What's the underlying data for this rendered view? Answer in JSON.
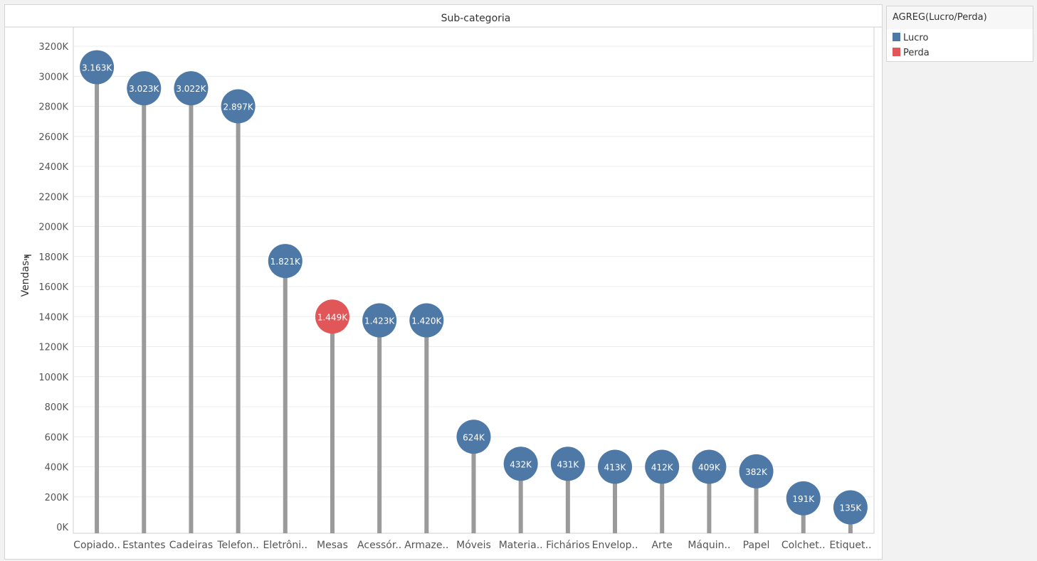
{
  "chart_data": {
    "type": "lollipop",
    "title": "Sub-categoria",
    "ylabel": "Vendas",
    "ylabel_icon": "sort-icon",
    "xlabel": "",
    "ylim": [
      0,
      3300
    ],
    "yticks": [
      0,
      200,
      400,
      600,
      800,
      1000,
      1200,
      1400,
      1600,
      1800,
      2000,
      2200,
      2400,
      2600,
      2800,
      3000,
      3200
    ],
    "ytick_labels": [
      "0K",
      "200K",
      "400K",
      "600K",
      "800K",
      "1000K",
      "1200K",
      "1400K",
      "1600K",
      "1800K",
      "2000K",
      "2200K",
      "2400K",
      "2600K",
      "2800K",
      "3000K",
      "3200K"
    ],
    "grid": true,
    "categories": [
      "Copiado..",
      "Estantes",
      "Cadeiras",
      "Telefon..",
      "Eletrôni..",
      "Mesas",
      "Acessór..",
      "Armaze..",
      "Móveis",
      "Materia..",
      "Fichários",
      "Envelop..",
      "Arte",
      "Máquin..",
      "Papel",
      "Colchet..",
      "Etiquet.."
    ],
    "values": [
      3060,
      2920,
      2920,
      2800,
      1770,
      1400,
      1375,
      1375,
      600,
      420,
      420,
      400,
      400,
      400,
      370,
      190,
      130
    ],
    "data_labels": [
      "3.163K",
      "3.023K",
      "3.022K",
      "2.897K",
      "1.821K",
      "1.449K",
      "1.423K",
      "1.420K",
      "624K",
      "432K",
      "431K",
      "413K",
      "412K",
      "409K",
      "382K",
      "191K",
      "135K"
    ],
    "groups": [
      "Lucro",
      "Lucro",
      "Lucro",
      "Lucro",
      "Lucro",
      "Perda",
      "Lucro",
      "Lucro",
      "Lucro",
      "Lucro",
      "Lucro",
      "Lucro",
      "Lucro",
      "Lucro",
      "Lucro",
      "Lucro",
      "Lucro"
    ],
    "legend": {
      "title": "AGREG(Lucro/Perda)",
      "placement": "right",
      "items": [
        {
          "name": "Lucro",
          "color": "#4e79a7"
        },
        {
          "name": "Perda",
          "color": "#e15759"
        }
      ]
    },
    "colors": {
      "stem": "#9a9a9a",
      "grid": "#ececec",
      "axis": "#cfcfcf",
      "label_text": "#ffffff"
    }
  }
}
